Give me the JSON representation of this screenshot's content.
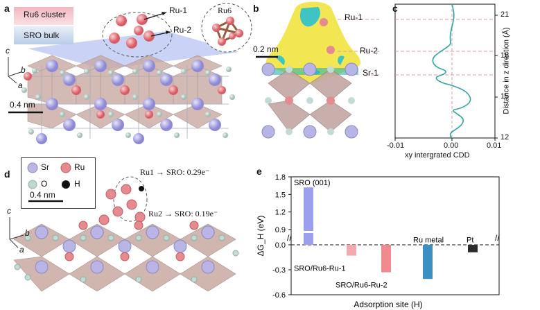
{
  "panels": {
    "a": {
      "label": "a",
      "legend_cluster": "Ru6 cluster",
      "legend_bulk": "SRO bulk",
      "inset_title": "Ru6",
      "site_labels": [
        "Ru-1",
        "Ru-2"
      ],
      "axes": {
        "c": "c",
        "b": "b",
        "a": "a"
      },
      "scale_bar": "0.4 nm"
    },
    "b": {
      "label": "b",
      "scale_bar": "0.2 nm",
      "site_labels": [
        "Ru-1",
        "Ru-2",
        "Sr-1"
      ]
    },
    "c": {
      "label": "c",
      "xlabel": "xy intergrated CDD",
      "ylabel": "Distance in z direction (Å)",
      "xticks": [
        "-0.01",
        "0.00",
        "0.01"
      ],
      "yticks": [
        "12",
        "15",
        "18",
        "21"
      ]
    },
    "d": {
      "label": "d",
      "legend": [
        {
          "symbol": "Sr",
          "color": "#b9b6e6"
        },
        {
          "symbol": "Ru",
          "color": "#e58a8f"
        },
        {
          "symbol": "O",
          "color": "#bfd8d2"
        },
        {
          "symbol": "H",
          "color": "#111111"
        }
      ],
      "scale_bar": "0.4 nm",
      "transfer1": "Ru1 → SRO: 0.29e⁻",
      "transfer2": "Ru2 → SRO: 0.19e⁻",
      "axes": {
        "c": "c",
        "b": "b",
        "a": "a"
      }
    },
    "e": {
      "label": "e"
    }
  },
  "chart_data": {
    "type": "bar",
    "title": "",
    "xlabel": "Adsorption site (H)",
    "ylabel": "ΔG_H (eV)",
    "ylim": [
      -0.6,
      1.8
    ],
    "axis_break": true,
    "yticks": [
      "1.8",
      "1.5",
      "1.2",
      "0.9",
      "0.0",
      "-0.3",
      "-0.6"
    ],
    "categories": [
      "SRO (001)",
      "SRO/Ru6-Ru-1",
      "SRO/Ru6-Ru-2",
      "Ru metal",
      "Pt"
    ],
    "values": [
      1.62,
      -0.13,
      -0.33,
      -0.41,
      -0.09
    ],
    "colors": [
      "#9aa0ee",
      "#f3a9ad",
      "#f08a8f",
      "#3d8fbf",
      "#2b2b2b"
    ]
  }
}
